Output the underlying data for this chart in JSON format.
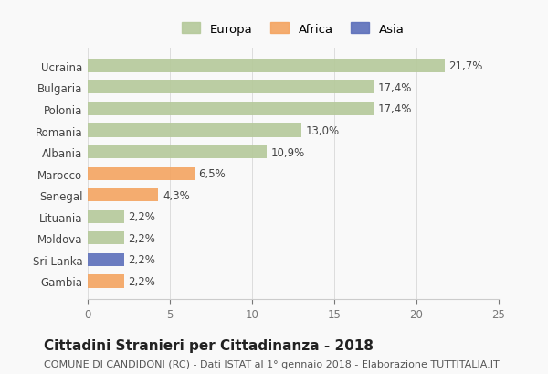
{
  "categories": [
    "Ucraina",
    "Bulgaria",
    "Polonia",
    "Romania",
    "Albania",
    "Marocco",
    "Senegal",
    "Lituania",
    "Moldova",
    "Sri Lanka",
    "Gambia"
  ],
  "values": [
    21.7,
    17.4,
    17.4,
    13.0,
    10.9,
    6.5,
    4.3,
    2.2,
    2.2,
    2.2,
    2.2
  ],
  "labels": [
    "21,7%",
    "17,4%",
    "17,4%",
    "13,0%",
    "10,9%",
    "6,5%",
    "4,3%",
    "2,2%",
    "2,2%",
    "2,2%",
    "2,2%"
  ],
  "colors": [
    "#b5c99a",
    "#b5c99a",
    "#b5c99a",
    "#b5c99a",
    "#b5c99a",
    "#f4a460",
    "#f4a460",
    "#b5c99a",
    "#b5c99a",
    "#5c6fba",
    "#f4a460"
  ],
  "legend_labels": [
    "Europa",
    "Africa",
    "Asia"
  ],
  "legend_colors": [
    "#b5c99a",
    "#f4a460",
    "#5c6fba"
  ],
  "title": "Cittadini Stranieri per Cittadinanza - 2018",
  "subtitle": "COMUNE DI CANDIDONI (RC) - Dati ISTAT al 1° gennaio 2018 - Elaborazione TUTTITALIA.IT",
  "xlim": [
    0,
    25
  ],
  "xticks": [
    0,
    5,
    10,
    15,
    20,
    25
  ],
  "background_color": "#f9f9f9",
  "bar_height": 0.6,
  "title_fontsize": 11,
  "subtitle_fontsize": 8,
  "label_fontsize": 8.5,
  "tick_fontsize": 8.5,
  "legend_fontsize": 9.5
}
